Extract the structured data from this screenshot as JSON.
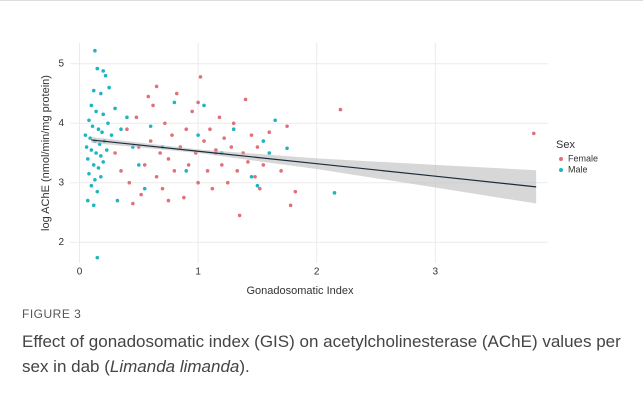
{
  "chart_data": {
    "type": "scatter",
    "x_label": "Gonadosomatic Index",
    "y_label": "log AChE (nmol/min/mg protein)",
    "legend_title": "Sex",
    "legend_position": "right",
    "xlim": [
      -0.08,
      3.95
    ],
    "ylim": [
      1.65,
      5.35
    ],
    "xticks": [
      0,
      1,
      2,
      3
    ],
    "yticks": [
      2,
      3,
      4,
      5
    ],
    "grid": true,
    "series": [
      {
        "name": "Female",
        "color": "#e0707a",
        "x": [
          0.3,
          0.35,
          0.4,
          0.42,
          0.48,
          0.5,
          0.52,
          0.55,
          0.6,
          0.62,
          0.65,
          0.68,
          0.7,
          0.72,
          0.75,
          0.78,
          0.8,
          0.82,
          0.85,
          0.88,
          0.9,
          0.92,
          0.95,
          0.98,
          1.0,
          1.02,
          1.05,
          1.08,
          1.1,
          1.12,
          1.15,
          1.18,
          1.2,
          1.22,
          1.25,
          1.28,
          1.3,
          1.33,
          1.35,
          1.38,
          1.4,
          1.42,
          1.45,
          1.48,
          1.5,
          1.52,
          1.55,
          1.6,
          1.7,
          1.78,
          1.82,
          1.75,
          2.2,
          3.83,
          0.58,
          0.45,
          0.75,
          1.0,
          0.65,
          1.15
        ],
        "values": [
          3.5,
          3.2,
          3.9,
          3.0,
          4.1,
          3.6,
          2.8,
          3.3,
          3.7,
          4.3,
          3.1,
          3.5,
          2.9,
          4.0,
          3.4,
          3.8,
          3.2,
          4.5,
          3.6,
          2.75,
          3.9,
          3.3,
          4.2,
          3.5,
          3.0,
          4.78,
          3.7,
          3.2,
          3.9,
          2.9,
          3.5,
          4.1,
          3.3,
          3.75,
          3.0,
          3.6,
          4.0,
          3.2,
          2.45,
          3.5,
          4.4,
          3.35,
          3.8,
          3.1,
          3.6,
          2.9,
          3.3,
          3.85,
          3.2,
          2.62,
          2.85,
          3.95,
          4.23,
          3.83,
          4.45,
          2.65,
          2.7,
          4.35,
          4.62,
          3.55
        ]
      },
      {
        "name": "Male",
        "color": "#1fb5c0",
        "x": [
          0.13,
          0.15,
          0.2,
          0.22,
          0.12,
          0.18,
          0.25,
          0.1,
          0.14,
          0.2,
          0.3,
          0.08,
          0.11,
          0.16,
          0.19,
          0.24,
          0.05,
          0.09,
          0.13,
          0.17,
          0.21,
          0.27,
          0.06,
          0.1,
          0.14,
          0.18,
          0.23,
          0.07,
          0.12,
          0.16,
          0.2,
          0.08,
          0.13,
          0.18,
          0.1,
          0.15,
          0.07,
          0.12,
          0.15,
          0.35,
          0.4,
          0.45,
          0.5,
          0.6,
          0.7,
          0.8,
          0.9,
          1.0,
          1.05,
          1.2,
          1.3,
          1.45,
          1.5,
          1.55,
          1.65,
          1.6,
          1.75,
          2.15,
          0.32,
          0.55
        ],
        "values": [
          5.22,
          4.92,
          4.88,
          4.8,
          4.55,
          4.5,
          4.6,
          4.3,
          4.2,
          4.15,
          4.25,
          4.05,
          3.95,
          3.9,
          3.85,
          4.0,
          3.8,
          3.75,
          3.7,
          3.65,
          3.7,
          3.8,
          3.6,
          3.55,
          3.5,
          3.45,
          3.55,
          3.4,
          3.3,
          3.25,
          3.35,
          3.15,
          3.05,
          3.1,
          2.95,
          2.85,
          2.7,
          2.62,
          1.74,
          3.9,
          4.1,
          3.6,
          3.3,
          3.95,
          3.6,
          4.35,
          3.2,
          3.8,
          4.3,
          3.5,
          3.9,
          3.1,
          2.95,
          3.7,
          4.05,
          3.5,
          3.58,
          2.83,
          2.7,
          2.9
        ]
      }
    ],
    "fit": {
      "color": "#1c2b3a",
      "band_color": "#bdbdbd",
      "x": [
        0.1,
        1,
        2,
        3,
        3.85
      ],
      "values": [
        3.72,
        3.53,
        3.32,
        3.11,
        2.93
      ],
      "lower": [
        3.67,
        3.5,
        3.23,
        2.92,
        2.65
      ],
      "upper": [
        3.77,
        3.56,
        3.41,
        3.3,
        3.21
      ]
    },
    "figure_label": "FIGURE 3",
    "caption_before": "Effect of gonadosomatic index (GIS) on acetylcholinesterase (AChE) values per sex in dab (",
    "caption_species": "Limanda limanda",
    "caption_after": ")."
  }
}
